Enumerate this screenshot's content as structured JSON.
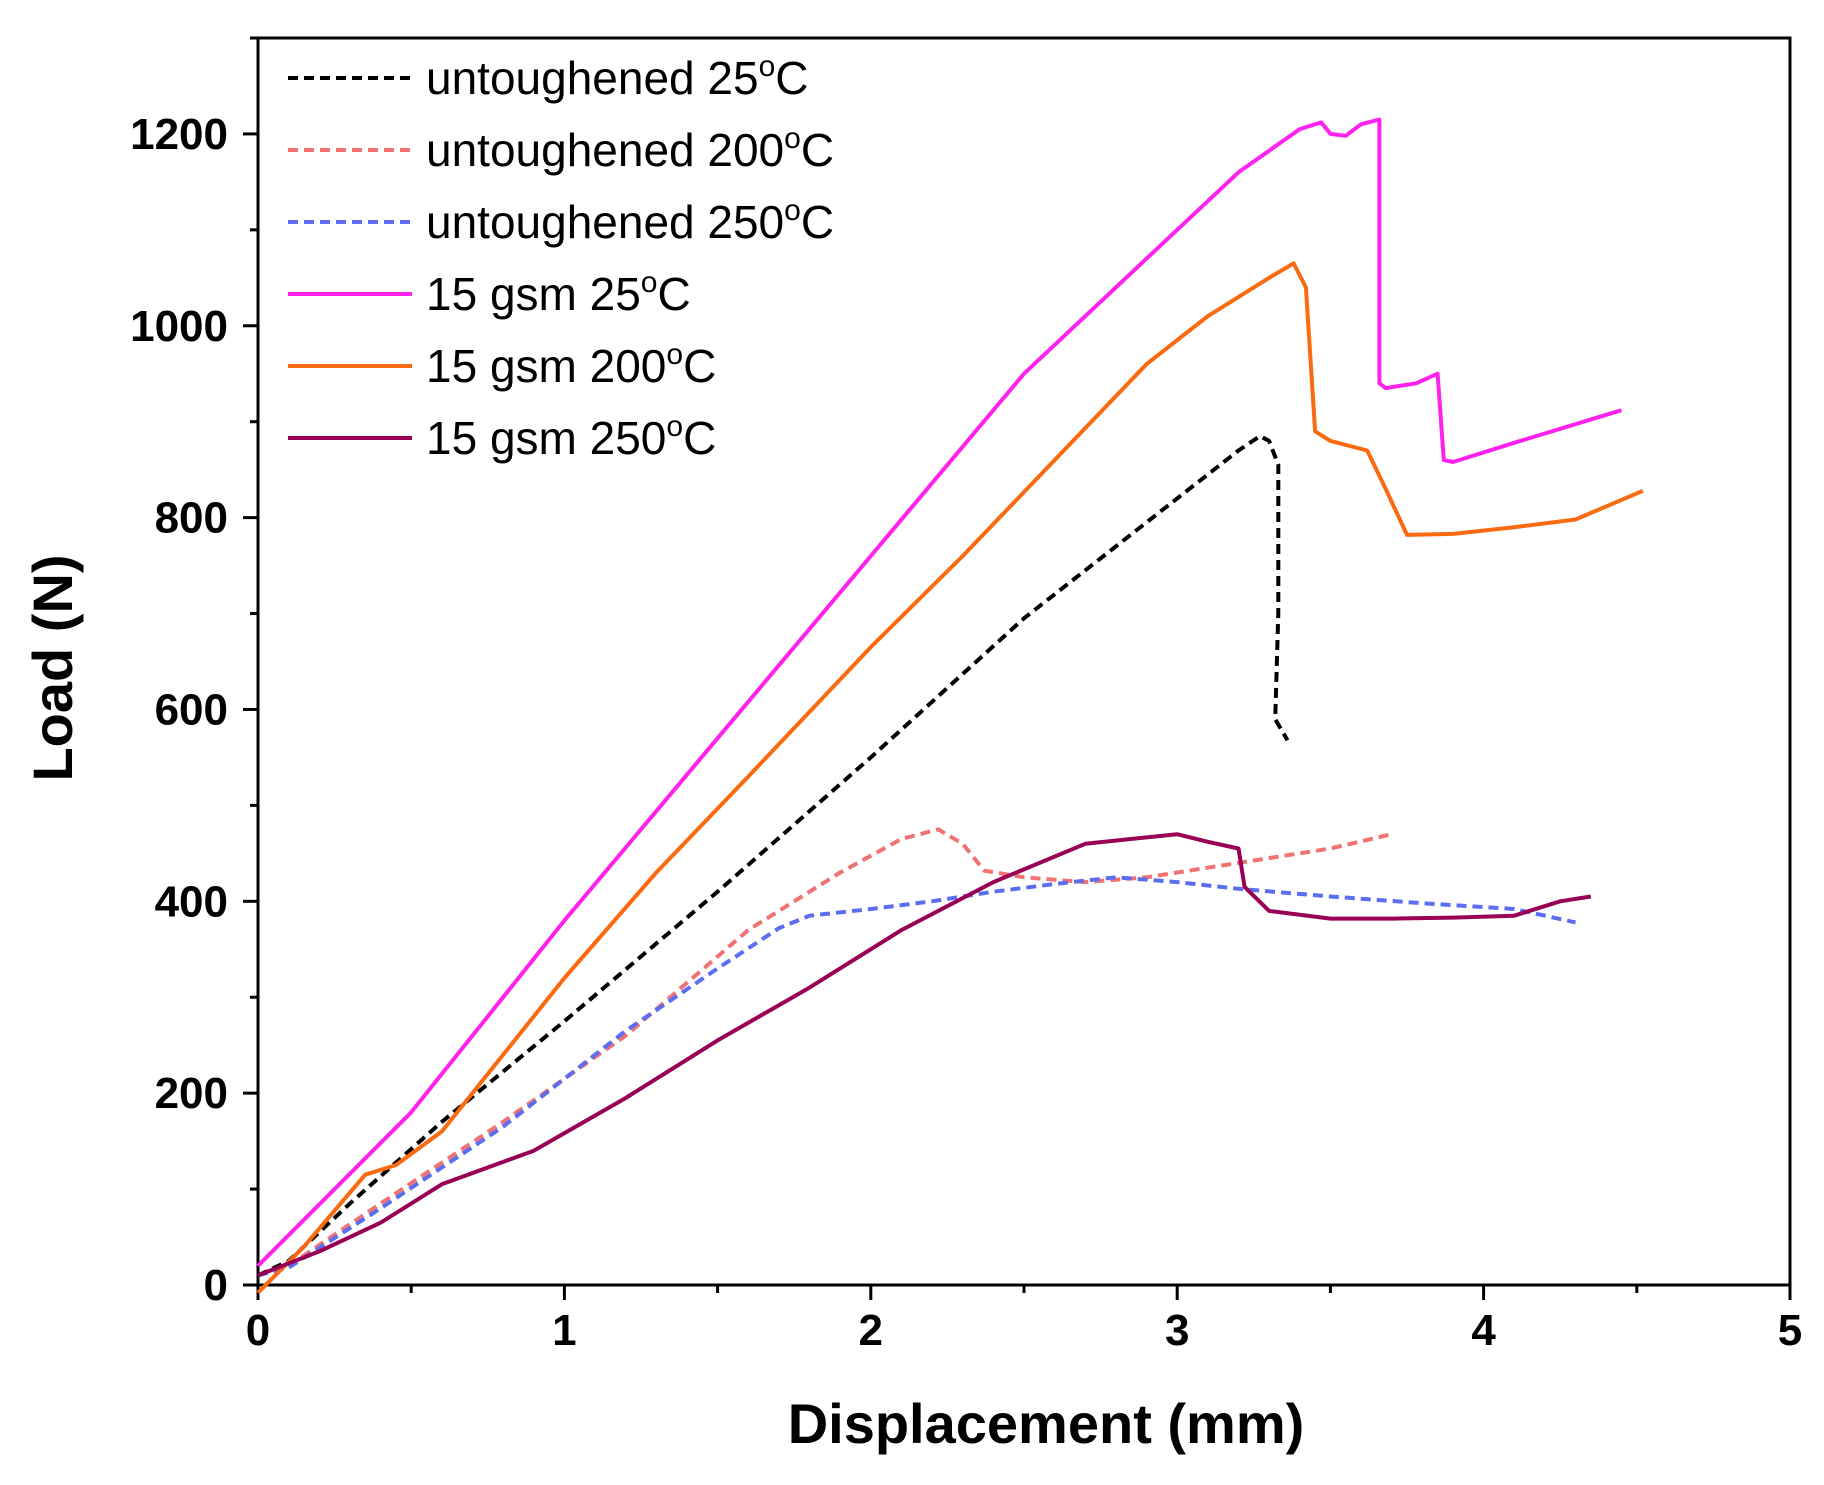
{
  "chart_data": {
    "type": "line",
    "xlabel": "Displacement (mm)",
    "ylabel": "Load (N)",
    "xlim": [
      0,
      5
    ],
    "ylim": [
      0,
      1300
    ],
    "xticks": [
      0,
      1,
      2,
      3,
      4,
      5
    ],
    "yticks": [
      0,
      200,
      400,
      600,
      800,
      1000,
      1200
    ],
    "x_minor_step": 0.5,
    "y_minor_step": 100,
    "grid": false,
    "legend_position": "top-left",
    "series": [
      {
        "name": "untoughened 25oC",
        "label_main": "untoughened 25",
        "label_sup": "o",
        "label_tail": "C",
        "color": "#000000",
        "dashed": true,
        "points": [
          [
            0,
            10
          ],
          [
            0.1,
            25
          ],
          [
            0.3,
            85
          ],
          [
            0.6,
            170
          ],
          [
            1,
            275
          ],
          [
            1.5,
            410
          ],
          [
            2,
            550
          ],
          [
            2.5,
            695
          ],
          [
            3,
            820
          ],
          [
            3.2,
            870
          ],
          [
            3.27,
            885
          ],
          [
            3.3,
            880
          ],
          [
            3.33,
            855
          ],
          [
            3.33,
            700
          ],
          [
            3.32,
            590
          ],
          [
            3.36,
            568
          ]
        ]
      },
      {
        "name": "untoughened 200oC",
        "label_main": "untoughened 200",
        "label_sup": "o",
        "label_tail": "C",
        "color": "#f07272",
        "dashed": true,
        "points": [
          [
            0,
            10
          ],
          [
            0.1,
            20
          ],
          [
            0.4,
            85
          ],
          [
            0.8,
            170
          ],
          [
            1.2,
            260
          ],
          [
            1.6,
            370
          ],
          [
            1.9,
            430
          ],
          [
            2.1,
            465
          ],
          [
            2.22,
            475
          ],
          [
            2.3,
            460
          ],
          [
            2.37,
            432
          ],
          [
            2.5,
            425
          ],
          [
            2.7,
            420
          ],
          [
            2.9,
            425
          ],
          [
            3.1,
            435
          ],
          [
            3.3,
            445
          ],
          [
            3.5,
            455
          ],
          [
            3.7,
            470
          ]
        ]
      },
      {
        "name": "untoughened 250oC",
        "label_main": "untoughened 250",
        "label_sup": "o",
        "label_tail": "C",
        "color": "#5b6ef0",
        "dashed": true,
        "points": [
          [
            0,
            10
          ],
          [
            0.1,
            18
          ],
          [
            0.4,
            80
          ],
          [
            0.8,
            165
          ],
          [
            1.2,
            265
          ],
          [
            1.5,
            330
          ],
          [
            1.7,
            372
          ],
          [
            1.8,
            385
          ],
          [
            2,
            392
          ],
          [
            2.2,
            400
          ],
          [
            2.4,
            410
          ],
          [
            2.6,
            418
          ],
          [
            2.8,
            425
          ],
          [
            3,
            420
          ],
          [
            3.2,
            413
          ],
          [
            3.5,
            405
          ],
          [
            3.8,
            398
          ],
          [
            4.1,
            392
          ],
          [
            4.3,
            378
          ]
        ]
      },
      {
        "name": "15 gsm 25oC",
        "label_main": "15 gsm 25",
        "label_sup": "o",
        "label_tail": "C",
        "color": "#ff22ee",
        "dashed": false,
        "points": [
          [
            0,
            20
          ],
          [
            0.5,
            180
          ],
          [
            1,
            380
          ],
          [
            1.5,
            570
          ],
          [
            2,
            760
          ],
          [
            2.5,
            950
          ],
          [
            3,
            1100
          ],
          [
            3.2,
            1160
          ],
          [
            3.4,
            1205
          ],
          [
            3.47,
            1212
          ],
          [
            3.5,
            1200
          ],
          [
            3.55,
            1198
          ],
          [
            3.6,
            1210
          ],
          [
            3.66,
            1215
          ],
          [
            3.66,
            940
          ],
          [
            3.68,
            935
          ],
          [
            3.78,
            940
          ],
          [
            3.85,
            950
          ],
          [
            3.87,
            860
          ],
          [
            3.9,
            858
          ],
          [
            4.1,
            878
          ],
          [
            4.45,
            912
          ]
        ]
      },
      {
        "name": "15 gsm 200oC",
        "label_main": "15 gsm 200",
        "label_sup": "o",
        "label_tail": "C",
        "color": "#fa6a10",
        "dashed": false,
        "points": [
          [
            0,
            -8
          ],
          [
            0.15,
            40
          ],
          [
            0.35,
            115
          ],
          [
            0.45,
            125
          ],
          [
            0.6,
            160
          ],
          [
            0.8,
            240
          ],
          [
            1,
            320
          ],
          [
            1.3,
            430
          ],
          [
            1.6,
            530
          ],
          [
            2,
            665
          ],
          [
            2.3,
            760
          ],
          [
            2.6,
            860
          ],
          [
            2.9,
            960
          ],
          [
            3.1,
            1010
          ],
          [
            3.3,
            1050
          ],
          [
            3.38,
            1065
          ],
          [
            3.42,
            1040
          ],
          [
            3.45,
            890
          ],
          [
            3.5,
            880
          ],
          [
            3.62,
            870
          ],
          [
            3.68,
            830
          ],
          [
            3.75,
            782
          ],
          [
            3.9,
            783
          ],
          [
            4.1,
            790
          ],
          [
            4.3,
            798
          ],
          [
            4.52,
            828
          ]
        ]
      },
      {
        "name": "15 gsm 250oC",
        "label_main": "15 gsm 250",
        "label_sup": "o",
        "label_tail": "C",
        "color": "#990055",
        "dashed": false,
        "points": [
          [
            0,
            10
          ],
          [
            0.2,
            35
          ],
          [
            0.4,
            65
          ],
          [
            0.6,
            105
          ],
          [
            0.9,
            140
          ],
          [
            1.2,
            195
          ],
          [
            1.5,
            255
          ],
          [
            1.8,
            310
          ],
          [
            2.1,
            370
          ],
          [
            2.4,
            420
          ],
          [
            2.7,
            460
          ],
          [
            3,
            470
          ],
          [
            3.1,
            462
          ],
          [
            3.2,
            455
          ],
          [
            3.22,
            415
          ],
          [
            3.3,
            390
          ],
          [
            3.5,
            382
          ],
          [
            3.7,
            382
          ],
          [
            3.9,
            383
          ],
          [
            4.1,
            385
          ],
          [
            4.25,
            400
          ],
          [
            4.35,
            405
          ]
        ]
      }
    ]
  }
}
